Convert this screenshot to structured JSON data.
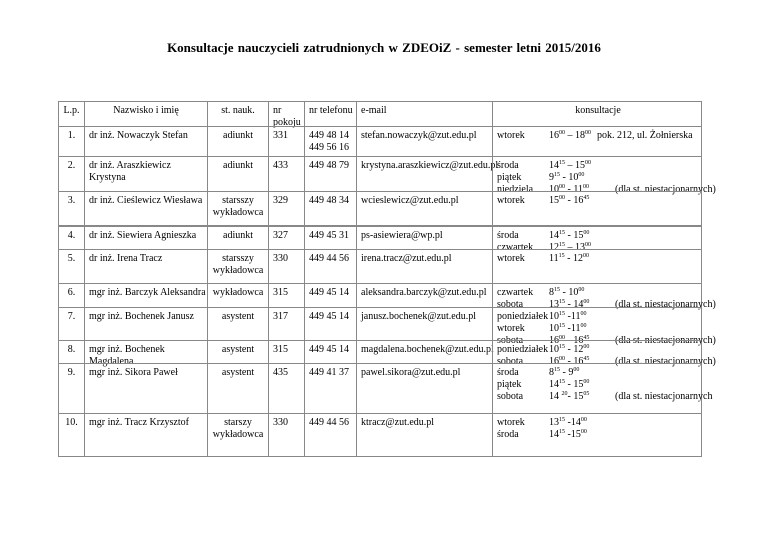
{
  "title": "Konsultacje  nauczycieli  zatrudnionych w ZDEOiZ - semester letni   2015/2016",
  "headers": {
    "lp": "L.p.",
    "name": "Nazwisko i imię",
    "title": "st. nauk.",
    "room": "nr pokoju",
    "phone": "nr telefonu",
    "email": "e-mail",
    "consult": "konsultacje"
  },
  "rows": [
    {
      "lp": "1.",
      "name": "dr inż. Nowaczyk Stefan",
      "title": "adiunkt",
      "room": "331",
      "phone": "449 48 14\n449 56 16",
      "email": "stefan.nowaczyk@zut.edu.pl",
      "consult": [
        {
          "day": "wtorek",
          "h1": "16",
          "m1": "00",
          "sep": " – ",
          "h2": "18",
          "m2": "00",
          "note": "pok. 212,  ul. Żołnierska"
        }
      ]
    },
    {
      "lp": "2.",
      "name": "dr inż. Araszkiewicz Krystyna",
      "title": "adiunkt",
      "room": "433",
      "phone": "449 48 79",
      "email": "krystyna.araszkiewicz@zut.edu.pl",
      "consult": [
        {
          "day": "środa",
          "h1": "14",
          "m1": "15",
          "sep": " – ",
          "h2": "15",
          "m2": "00",
          "note": ""
        },
        {
          "day": "piątek",
          "h1": "9",
          "m1": "15",
          "sep": " - ",
          "h2": "10",
          "m2": "00",
          "note": ""
        },
        {
          "day": "niedziela",
          "h1": "10",
          "m1": "00",
          "sep": " - ",
          "h2": "11",
          "m2": "00",
          "note": "(dla st. niestacjonarnych)"
        }
      ]
    },
    {
      "lp": "3.",
      "name": "dr inż. Cieślewicz Wiesława",
      "title": "starsszy wykładowca",
      "room": "329",
      "phone": "449 48 34",
      "email": "wcieslewicz@zut.edu.pl",
      "consult": [
        {
          "day": "wtorek",
          "h1": "15",
          "m1": "00",
          "sep": " - ",
          "h2": "16",
          "m2": "45",
          "note": ""
        }
      ]
    },
    {
      "lp": "4.",
      "name": "dr inż. Siewiera Agnieszka",
      "title": "adiunkt",
      "room": "327",
      "phone": "449 45 31",
      "email": "ps-asiewiera@wp.pl",
      "consult": [
        {
          "day": "środa",
          "h1": "14",
          "m1": "15",
          "sep": " -  ",
          "h2": "15",
          "m2": "00",
          "note": ""
        },
        {
          "day": "czwartek",
          "h1": "12",
          "m1": "15",
          "sep": " – ",
          "h2": "13",
          "m2": "00",
          "note": ""
        }
      ]
    },
    {
      "lp": "5.",
      "name": "dr inż. Irena Tracz",
      "title": "starsszy wykładowca",
      "room": "330",
      "phone": "449 44 56",
      "email": "irena.tracz@zut.edu.pl",
      "consult": [
        {
          "day": "wtorek",
          "h1": "11",
          "m1": "15",
          "sep": " - ",
          "h2": "12",
          "m2": "00",
          "note": ""
        }
      ]
    },
    {
      "lp": "6.",
      "name": "mgr inż. Barczyk Aleksandra",
      "title": "wykładowca",
      "room": "315",
      "phone": "449 45 14",
      "email": "aleksandra.barczyk@zut.edu.pl",
      "consult": [
        {
          "day": "czwartek",
          "h1": "8",
          "m1": "15",
          "sep": " - ",
          "h2": "10",
          "m2": "00",
          "note": ""
        },
        {
          "day": "sobota",
          "h1": "13",
          "m1": "15",
          "sep": " - ",
          "h2": "14",
          "m2": "00",
          "note": "(dla st. niestacjonarnych)"
        }
      ]
    },
    {
      "lp": "7.",
      "name": "mgr inż. Bochenek Janusz",
      "title": "asystent",
      "room": "317",
      "phone": "449 45 14",
      "email": "janusz.bochenek@zut.edu.pl",
      "consult": [
        {
          "day": "poniedziałek",
          "h1": "10",
          "m1": "15",
          "sep": " -",
          "h2": "11",
          "m2": "00",
          "note": ""
        },
        {
          "day": "wtorek",
          "h1": "10",
          "m1": "15",
          "sep": " -",
          "h2": "11",
          "m2": "00",
          "note": ""
        },
        {
          "day": "sobota",
          "h1": "16",
          "m1": "00",
          "sep": " - ",
          "h2": "16",
          "m2": "45",
          "note": "(dla st. niestacjonarnych)"
        }
      ]
    },
    {
      "lp": "8.",
      "name": "mgr inż. Bochenek Magdalena",
      "title": "asystent",
      "room": "315",
      "phone": "449 45 14",
      "email": "magdalena.bochenek@zut.edu.pl",
      "consult": [
        {
          "day": "poniedziałek",
          "h1": "10",
          "m1": "15",
          "sep": " - ",
          "h2": "12",
          "m2": "00",
          "note": ""
        },
        {
          "day": "sobota",
          "h1": "16",
          "m1": "00",
          "sep": " - ",
          "h2": "16",
          "m2": "45",
          "note": "(dla st. niestacjonarnych)"
        }
      ]
    },
    {
      "lp": "9.",
      "name": "mgr inż. Sikora Paweł",
      "title": "asystent",
      "room": "435",
      "phone": "449 41 37",
      "email": "pawel.sikora@zut.edu.pl",
      "consult": [
        {
          "day": "środa",
          "h1": "8",
          "m1": "15",
          "sep": " -  ",
          "h2": "9",
          "m2": "00",
          "note": ""
        },
        {
          "day": "piątek",
          "h1": "14",
          "m1": "15",
          "sep": " - ",
          "h2": "15",
          "m2": "00",
          "note": ""
        },
        {
          "day": "sobota",
          "h1": "14 ",
          "m1": "20",
          "sep": "- ",
          "h2": "15",
          "m2": "05",
          "note": "(dla st. niestacjonarnych"
        }
      ]
    },
    {
      "lp": "10.",
      "name": "mgr inż. Tracz Krzysztof",
      "title": "starszy wykładowca",
      "room": "330",
      "phone": "449 44 56",
      "email": "ktracz@zut.edu.pl",
      "consult": [
        {
          "day": "wtorek",
          "h1": "13",
          "m1": "15",
          "sep": " -",
          "h2": "14",
          "m2": "00",
          "note": ""
        },
        {
          "day": "środa",
          "h1": "14",
          "m1": "15",
          "sep": " -",
          "h2": "15",
          "m2": "00",
          "note": ""
        }
      ]
    }
  ]
}
